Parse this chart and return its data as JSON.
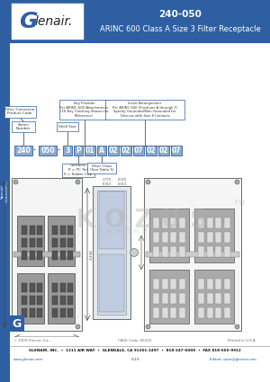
{
  "title_line1": "240-050",
  "title_line2": "ARINC 600 Class A Size 3 Filter Receptacle",
  "header_bg": "#2E5FA3",
  "header_text_color": "#ffffff",
  "side_label": "Special\nConnectors",
  "side_bg": "#2E5FA3",
  "part_number_boxes": [
    "240",
    "050",
    "3",
    "P",
    "01",
    "A",
    "02",
    "02",
    "07",
    "02",
    "02",
    "07"
  ],
  "box_bg": "#6B8CC4",
  "box_border": "#2E5FA3",
  "box_text": "#ffffff",
  "ann_border": "#2E5FA3",
  "ann_bg": "#ffffff",
  "ann_text": "#333333",
  "page_bg": "#ffffff",
  "footer_line1": "GLENAIR, INC.  •  1211 AIR WAY  •  GLENDALE, CA 91201-2497  •  818-247-6000  •  FAX 818-500-9912",
  "footer_line2": "www.glenair.com",
  "footer_line3": "G-19",
  "footer_line4": "Edited: sales@glenair.com",
  "footer_copyright": "© 2009 Glenair, Inc.",
  "footer_cage": "CAGE Code: 06324",
  "footer_printed": "Printed in U.S.A.",
  "watermark_text": "K O Z U S",
  "watermark_sub": "и н ж е н и й н о й",
  "dim_color": "#444444",
  "draw_border": "#555555",
  "draw_bg": "#f5f5f5",
  "panel_bg": "#cccccc",
  "panel_border": "#666666"
}
